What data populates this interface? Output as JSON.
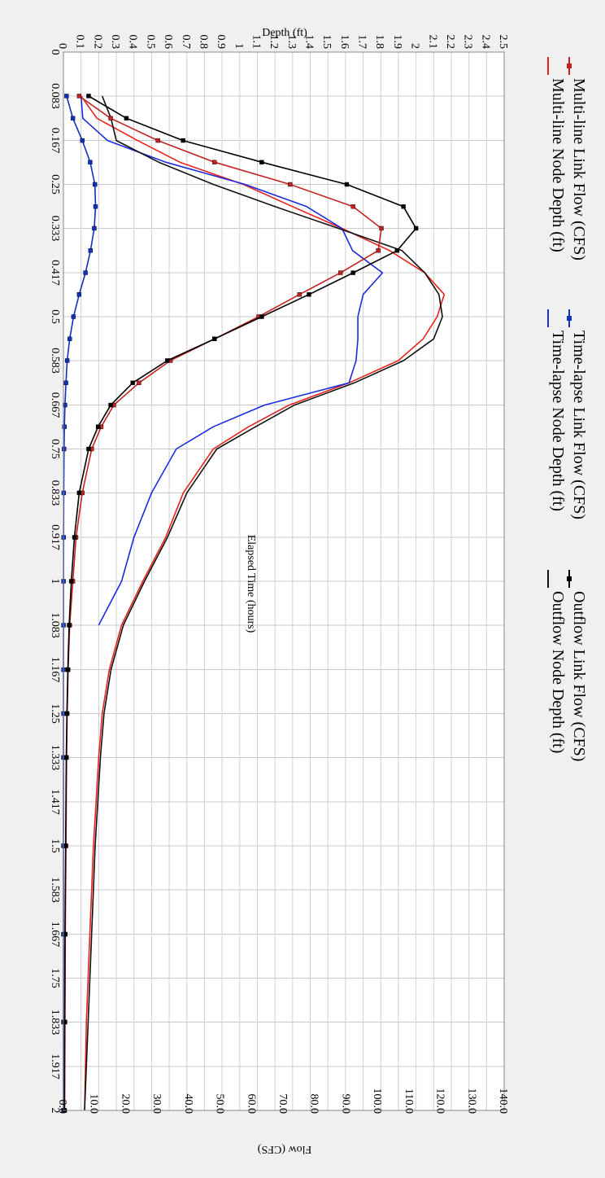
{
  "chart_data": {
    "type": "line",
    "title": "",
    "x_axis": {
      "label": "Elapsed Time (hours)",
      "range": [
        0,
        2
      ],
      "ticks": [
        "0",
        "0.083",
        "0.167",
        "0.25",
        "0.333",
        "0.417",
        "0.5",
        "0.583",
        "0.667",
        "0.75",
        "0.833",
        "0.917",
        "1",
        "1.083",
        "1.167",
        "1.25",
        "1.333",
        "1.417",
        "1.5",
        "1.583",
        "1.667",
        "1.75",
        "1.833",
        "1.917",
        "2"
      ]
    },
    "depth_axis": {
      "label": "Depth (ft)",
      "range": [
        0,
        2.5
      ],
      "ticks": [
        "0",
        "0.1",
        "0.2",
        "0.3",
        "0.4",
        "0.5",
        "0.6",
        "0.7",
        "0.8",
        "0.9",
        "1",
        "1.1",
        "1.2",
        "1.3",
        "1.4",
        "1.5",
        "1.6",
        "1.7",
        "1.8",
        "1.9",
        "2",
        "2.1",
        "2.2",
        "2.3",
        "2.4",
        "2.5"
      ]
    },
    "flow_axis": {
      "label": "Flow (CFS)",
      "range": [
        0,
        140
      ],
      "ticks": [
        "0.0",
        "10.0",
        "20.0",
        "30.0",
        "40.0",
        "50.0",
        "60.0",
        "70.0",
        "80.0",
        "90.0",
        "100.0",
        "110.0",
        "120.0",
        "130.0",
        "140.0"
      ]
    },
    "grid": true,
    "legend_position": "right",
    "series": [
      {
        "name": "Multi-line Node Depth (ft)",
        "axis": "depth",
        "color": "#e8221b",
        "marker": "none",
        "x": [
          0.083,
          0.125,
          0.167,
          0.208,
          0.25,
          0.292,
          0.333,
          0.375,
          0.417,
          0.458,
          0.5,
          0.542,
          0.583,
          0.625,
          0.667,
          0.708,
          0.75,
          0.833,
          0.917,
          1.0,
          1.083,
          1.167,
          1.25,
          1.333,
          1.5,
          1.667,
          1.833,
          2.0
        ],
        "y": [
          0.1,
          0.19,
          0.42,
          0.66,
          1.02,
          1.3,
          1.58,
          1.85,
          2.05,
          2.16,
          2.12,
          2.04,
          1.9,
          1.62,
          1.28,
          1.05,
          0.85,
          0.68,
          0.58,
          0.45,
          0.33,
          0.26,
          0.22,
          0.2,
          0.17,
          0.15,
          0.13,
          0.12
        ]
      },
      {
        "name": "Time-lapse Node Depth (ft)",
        "axis": "depth",
        "color": "#1a2ce0",
        "marker": "none",
        "x": [
          0.083,
          0.125,
          0.167,
          0.208,
          0.25,
          0.292,
          0.333,
          0.375,
          0.417,
          0.458,
          0.5,
          0.542,
          0.583,
          0.625,
          0.667,
          0.708,
          0.75,
          0.833,
          0.917,
          1.0,
          1.083
        ],
        "y": [
          0.1,
          0.11,
          0.25,
          0.58,
          1.03,
          1.38,
          1.58,
          1.64,
          1.81,
          1.7,
          1.67,
          1.67,
          1.66,
          1.62,
          1.14,
          0.85,
          0.64,
          0.5,
          0.4,
          0.33,
          0.2
        ]
      },
      {
        "name": "Outflow Node Depth (ft)",
        "axis": "depth",
        "color": "#111111",
        "marker": "none",
        "x": [
          0.083,
          0.125,
          0.167,
          0.208,
          0.25,
          0.292,
          0.333,
          0.375,
          0.417,
          0.458,
          0.5,
          0.542,
          0.583,
          0.625,
          0.667,
          0.708,
          0.75,
          0.833,
          0.917,
          1.0,
          1.083,
          1.167,
          1.25,
          1.333,
          1.5,
          1.667,
          1.833,
          2.0
        ],
        "y": [
          0.22,
          0.27,
          0.3,
          0.54,
          0.85,
          1.2,
          1.56,
          1.92,
          2.05,
          2.13,
          2.15,
          2.1,
          1.93,
          1.65,
          1.31,
          1.09,
          0.87,
          0.7,
          0.59,
          0.46,
          0.34,
          0.27,
          0.23,
          0.21,
          0.18,
          0.16,
          0.14,
          0.12
        ]
      },
      {
        "name": "Multi-line Link Flow (CFS)",
        "axis": "flow",
        "color": "#c42222",
        "marker": "square",
        "x": [
          0.083,
          0.125,
          0.167,
          0.208,
          0.25,
          0.292,
          0.333,
          0.375,
          0.417,
          0.458,
          0.5,
          0.542,
          0.583,
          0.625,
          0.667,
          0.708,
          0.75,
          0.833,
          0.917,
          1.0,
          1.083,
          1.167,
          1.25,
          1.333,
          1.5,
          1.667,
          1.833,
          2.0
        ],
        "y": [
          5,
          15,
          30,
          48,
          72,
          92,
          101,
          100,
          88,
          75,
          62,
          48,
          34,
          24,
          16,
          12,
          9,
          6,
          4,
          3,
          2,
          1.5,
          1.2,
          1,
          0.8,
          0.6,
          0.5,
          0.4
        ]
      },
      {
        "name": "Time-lapse Link Flow (CFS)",
        "axis": "flow",
        "color": "#1030c0",
        "marker": "square",
        "x": [
          0.083,
          0.125,
          0.167,
          0.208,
          0.25,
          0.292,
          0.333,
          0.375,
          0.417,
          0.458,
          0.5,
          0.542,
          0.583,
          0.625,
          0.667,
          0.708,
          0.75,
          0.833,
          0.917,
          1.0,
          1.083,
          1.167,
          1.25,
          1.333,
          1.5,
          1.667,
          1.833,
          2.0
        ],
        "y": [
          1,
          3,
          6,
          8.5,
          10,
          10.2,
          9.8,
          8.6,
          7,
          5,
          3.2,
          2,
          1.2,
          0.8,
          0.5,
          0.3,
          0.2,
          0.1,
          0.05,
          0.03,
          0.02,
          0.01,
          0.01,
          0,
          0,
          0,
          0,
          0
        ]
      },
      {
        "name": "Outflow Link Flow (CFS)",
        "axis": "flow",
        "color": "#000000",
        "marker": "square",
        "x": [
          0.083,
          0.125,
          0.167,
          0.208,
          0.25,
          0.292,
          0.333,
          0.375,
          0.417,
          0.458,
          0.5,
          0.542,
          0.583,
          0.625,
          0.667,
          0.708,
          0.75,
          0.833,
          0.917,
          1.0,
          1.083,
          1.167,
          1.25,
          1.333,
          1.5,
          1.667,
          1.833,
          2.0
        ],
        "y": [
          8,
          20,
          38,
          63,
          90,
          108,
          112,
          106,
          92,
          78,
          63,
          48,
          33,
          22,
          15,
          11,
          8,
          5,
          3.5,
          2.5,
          1.8,
          1.4,
          1.1,
          0.9,
          0.7,
          0.5,
          0.4,
          0.3
        ]
      }
    ]
  }
}
